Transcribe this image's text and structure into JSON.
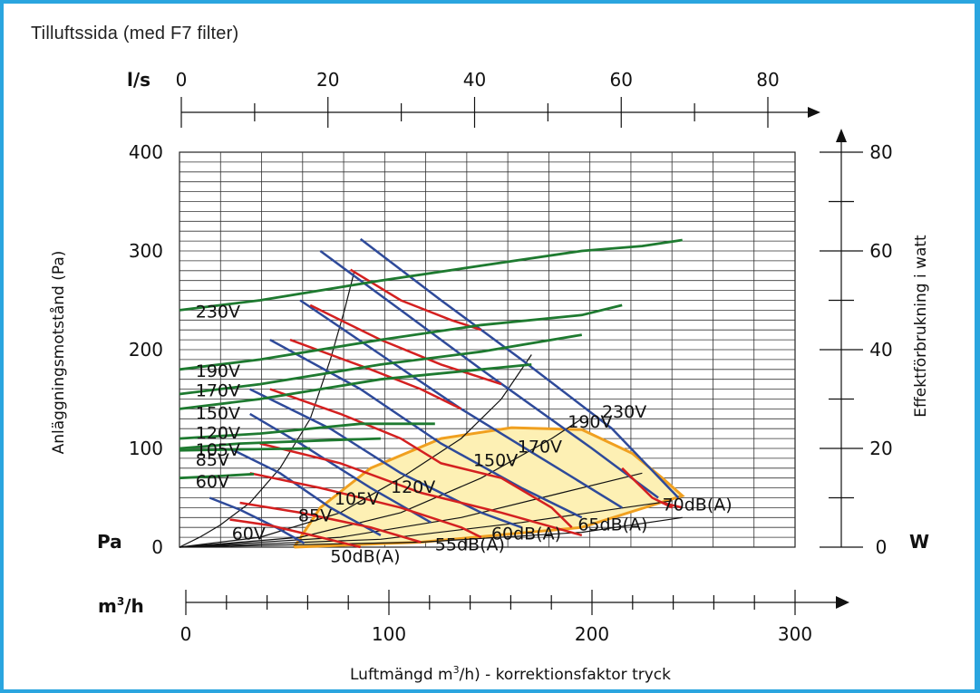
{
  "title": "Tilluftssida (med F7 filter)",
  "chart_data": {
    "type": "line",
    "xlabel": "Luftmängd m³/h) - korrektionsfaktor tryck",
    "ylabel_left": "Anläggningsmotstånd (Pa)",
    "ylabel_right": "Effektförbrukning i watt",
    "xunit": "m³/h",
    "yunit_left": "Pa",
    "yunit_right": "W",
    "top_unit": "l/s",
    "xlim": [
      0,
      310
    ],
    "ylim": [
      0,
      400
    ],
    "grid": true,
    "bottom_ticks": [
      "0",
      "100",
      "200",
      "300"
    ],
    "top_ticks": [
      "0",
      "20",
      "40",
      "60",
      "80"
    ],
    "left_ticks": [
      "0",
      "100",
      "200",
      "300",
      "400"
    ],
    "right_ticks": [
      "0",
      "20",
      "40",
      "60",
      "80"
    ],
    "power_curves": [
      {
        "name": "230V",
        "points": [
          [
            0,
            240
          ],
          [
            40,
            250
          ],
          [
            100,
            270
          ],
          [
            150,
            285
          ],
          [
            200,
            300
          ],
          [
            230,
            305
          ],
          [
            250,
            311
          ]
        ]
      },
      {
        "name": "190V",
        "points": [
          [
            0,
            180
          ],
          [
            40,
            190
          ],
          [
            100,
            210
          ],
          [
            150,
            225
          ],
          [
            200,
            235
          ],
          [
            220,
            245
          ]
        ]
      },
      {
        "name": "170V",
        "points": [
          [
            0,
            155
          ],
          [
            40,
            165
          ],
          [
            100,
            185
          ],
          [
            150,
            198
          ],
          [
            200,
            215
          ]
        ]
      },
      {
        "name": "150V",
        "points": [
          [
            0,
            140
          ],
          [
            40,
            150
          ],
          [
            100,
            170
          ],
          [
            150,
            180
          ],
          [
            175,
            185
          ]
        ]
      },
      {
        "name": "120V",
        "points": [
          [
            0,
            110
          ],
          [
            40,
            115
          ],
          [
            90,
            125
          ],
          [
            127,
            125
          ]
        ]
      },
      {
        "name": "105V",
        "points": [
          [
            0,
            100
          ],
          [
            30,
            105
          ],
          [
            70,
            108
          ],
          [
            100,
            110
          ]
        ]
      },
      {
        "name": "85V",
        "points": [
          [
            0,
            98
          ],
          [
            30,
            99
          ],
          [
            65,
            100
          ]
        ]
      },
      {
        "name": "60V",
        "points": [
          [
            0,
            70
          ],
          [
            20,
            72
          ],
          [
            37,
            74
          ]
        ]
      }
    ],
    "fan_curves": [
      {
        "name": "230V",
        "label_at": [
          210,
          131
        ],
        "points": [
          [
            90,
            312
          ],
          [
            130,
            250
          ],
          [
            170,
            190
          ],
          [
            215,
            120
          ],
          [
            248,
            50
          ]
        ]
      },
      {
        "name": "190V",
        "label_at": [
          193,
          121
        ],
        "points": [
          [
            70,
            300
          ],
          [
            110,
            240
          ],
          [
            150,
            180
          ],
          [
            205,
            100
          ],
          [
            238,
            50
          ]
        ]
      },
      {
        "name": "170V",
        "label_at": [
          168,
          96
        ],
        "points": [
          [
            60,
            250
          ],
          [
            100,
            195
          ],
          [
            140,
            140
          ],
          [
            180,
            90
          ],
          [
            220,
            40
          ]
        ]
      },
      {
        "name": "150V",
        "label_at": [
          146,
          82
        ],
        "points": [
          [
            45,
            210
          ],
          [
            90,
            160
          ],
          [
            130,
            105
          ],
          [
            170,
            60
          ],
          [
            200,
            30
          ]
        ]
      },
      {
        "name": "120V",
        "label_at": [
          105,
          55
        ],
        "points": [
          [
            35,
            160
          ],
          [
            75,
            120
          ],
          [
            110,
            75
          ],
          [
            150,
            35
          ],
          [
            170,
            20
          ]
        ]
      },
      {
        "name": "105V",
        "label_at": [
          77,
          43
        ],
        "points": [
          [
            35,
            135
          ],
          [
            60,
            105
          ],
          [
            95,
            60
          ],
          [
            125,
            25
          ]
        ]
      },
      {
        "name": "85V",
        "label_at": [
          59,
          26
        ],
        "points": [
          [
            25,
            100
          ],
          [
            50,
            75
          ],
          [
            75,
            40
          ],
          [
            100,
            12
          ]
        ]
      },
      {
        "name": "60V",
        "label_at": [
          26,
          8
        ],
        "points": [
          [
            15,
            50
          ],
          [
            30,
            38
          ],
          [
            48,
            20
          ],
          [
            62,
            4
          ]
        ]
      }
    ],
    "sound_levels": [
      {
        "name": "50dB(A)",
        "label_at": [
          75,
          -15
        ]
      },
      {
        "name": "55dB(A)",
        "label_at": [
          127,
          -3
        ]
      },
      {
        "name": "60dB(A)",
        "label_at": [
          155,
          8
        ]
      },
      {
        "name": "65dB(A)",
        "label_at": [
          198,
          17
        ]
      },
      {
        "name": "70dB(A)",
        "label_at": [
          240,
          37
        ]
      }
    ],
    "extra_labels": [
      "230V",
      "190V",
      "170V",
      "150V",
      "120V",
      "105V",
      "85V",
      "60V"
    ]
  }
}
